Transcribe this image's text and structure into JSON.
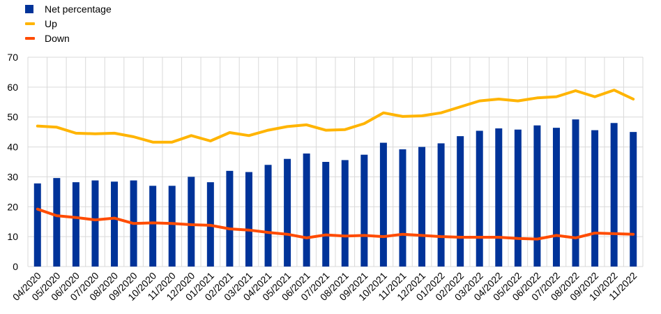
{
  "legend": {
    "net": "Net percentage",
    "up": "Up",
    "down": "Down"
  },
  "colors": {
    "net": "#003399",
    "up": "#ffb400",
    "down": "#ff4b00",
    "grid": "#d9d9d9"
  },
  "chart_data": {
    "type": "bar",
    "title": "",
    "xlabel": "",
    "ylabel": "",
    "ylim": [
      0,
      70
    ],
    "yticks": [
      0,
      10,
      20,
      30,
      40,
      50,
      60,
      70
    ],
    "grid": true,
    "legend_position": "top-left",
    "categories": [
      "04/2020",
      "05/2020",
      "06/2020",
      "07/2020",
      "08/2020",
      "09/2020",
      "10/2020",
      "11/2020",
      "12/2020",
      "01/2021",
      "02/2021",
      "03/2021",
      "04/2021",
      "05/2021",
      "06/2021",
      "07/2021",
      "08/2021",
      "09/2021",
      "10/2021",
      "11/2021",
      "12/2021",
      "01/2022",
      "02/2022",
      "03/2022",
      "04/2022",
      "05/2022",
      "06/2022",
      "07/2022",
      "08/2022",
      "09/2022",
      "10/2022",
      "11/2022"
    ],
    "series": [
      {
        "name": "Net percentage",
        "type": "bar",
        "values": [
          27.8,
          29.6,
          28.2,
          28.8,
          28.4,
          28.8,
          27.0,
          27.0,
          30.0,
          28.2,
          32.0,
          31.6,
          34.0,
          36.0,
          37.8,
          35.0,
          35.6,
          37.4,
          41.4,
          39.2,
          40.0,
          41.2,
          43.6,
          45.4,
          46.2,
          45.8,
          47.2,
          46.4,
          49.2,
          45.6,
          48.0,
          45.0
        ]
      },
      {
        "name": "Up",
        "type": "line",
        "values": [
          47.0,
          46.6,
          44.6,
          44.4,
          44.6,
          43.4,
          41.6,
          41.6,
          43.8,
          42.0,
          44.8,
          43.8,
          45.6,
          46.8,
          47.4,
          45.6,
          45.8,
          47.8,
          51.4,
          50.2,
          50.4,
          51.4,
          53.4,
          55.4,
          56.0,
          55.4,
          56.4,
          56.8,
          58.8,
          56.8,
          59.0,
          56.0
        ]
      },
      {
        "name": "Down",
        "type": "line",
        "values": [
          19.2,
          17.0,
          16.4,
          15.6,
          16.2,
          14.4,
          14.6,
          14.4,
          14.0,
          13.8,
          12.6,
          12.2,
          11.4,
          10.8,
          9.6,
          10.6,
          10.2,
          10.4,
          10.0,
          10.8,
          10.4,
          10.0,
          9.8,
          9.8,
          9.8,
          9.4,
          9.2,
          10.4,
          9.6,
          11.2,
          11.0,
          10.8
        ]
      }
    ]
  }
}
